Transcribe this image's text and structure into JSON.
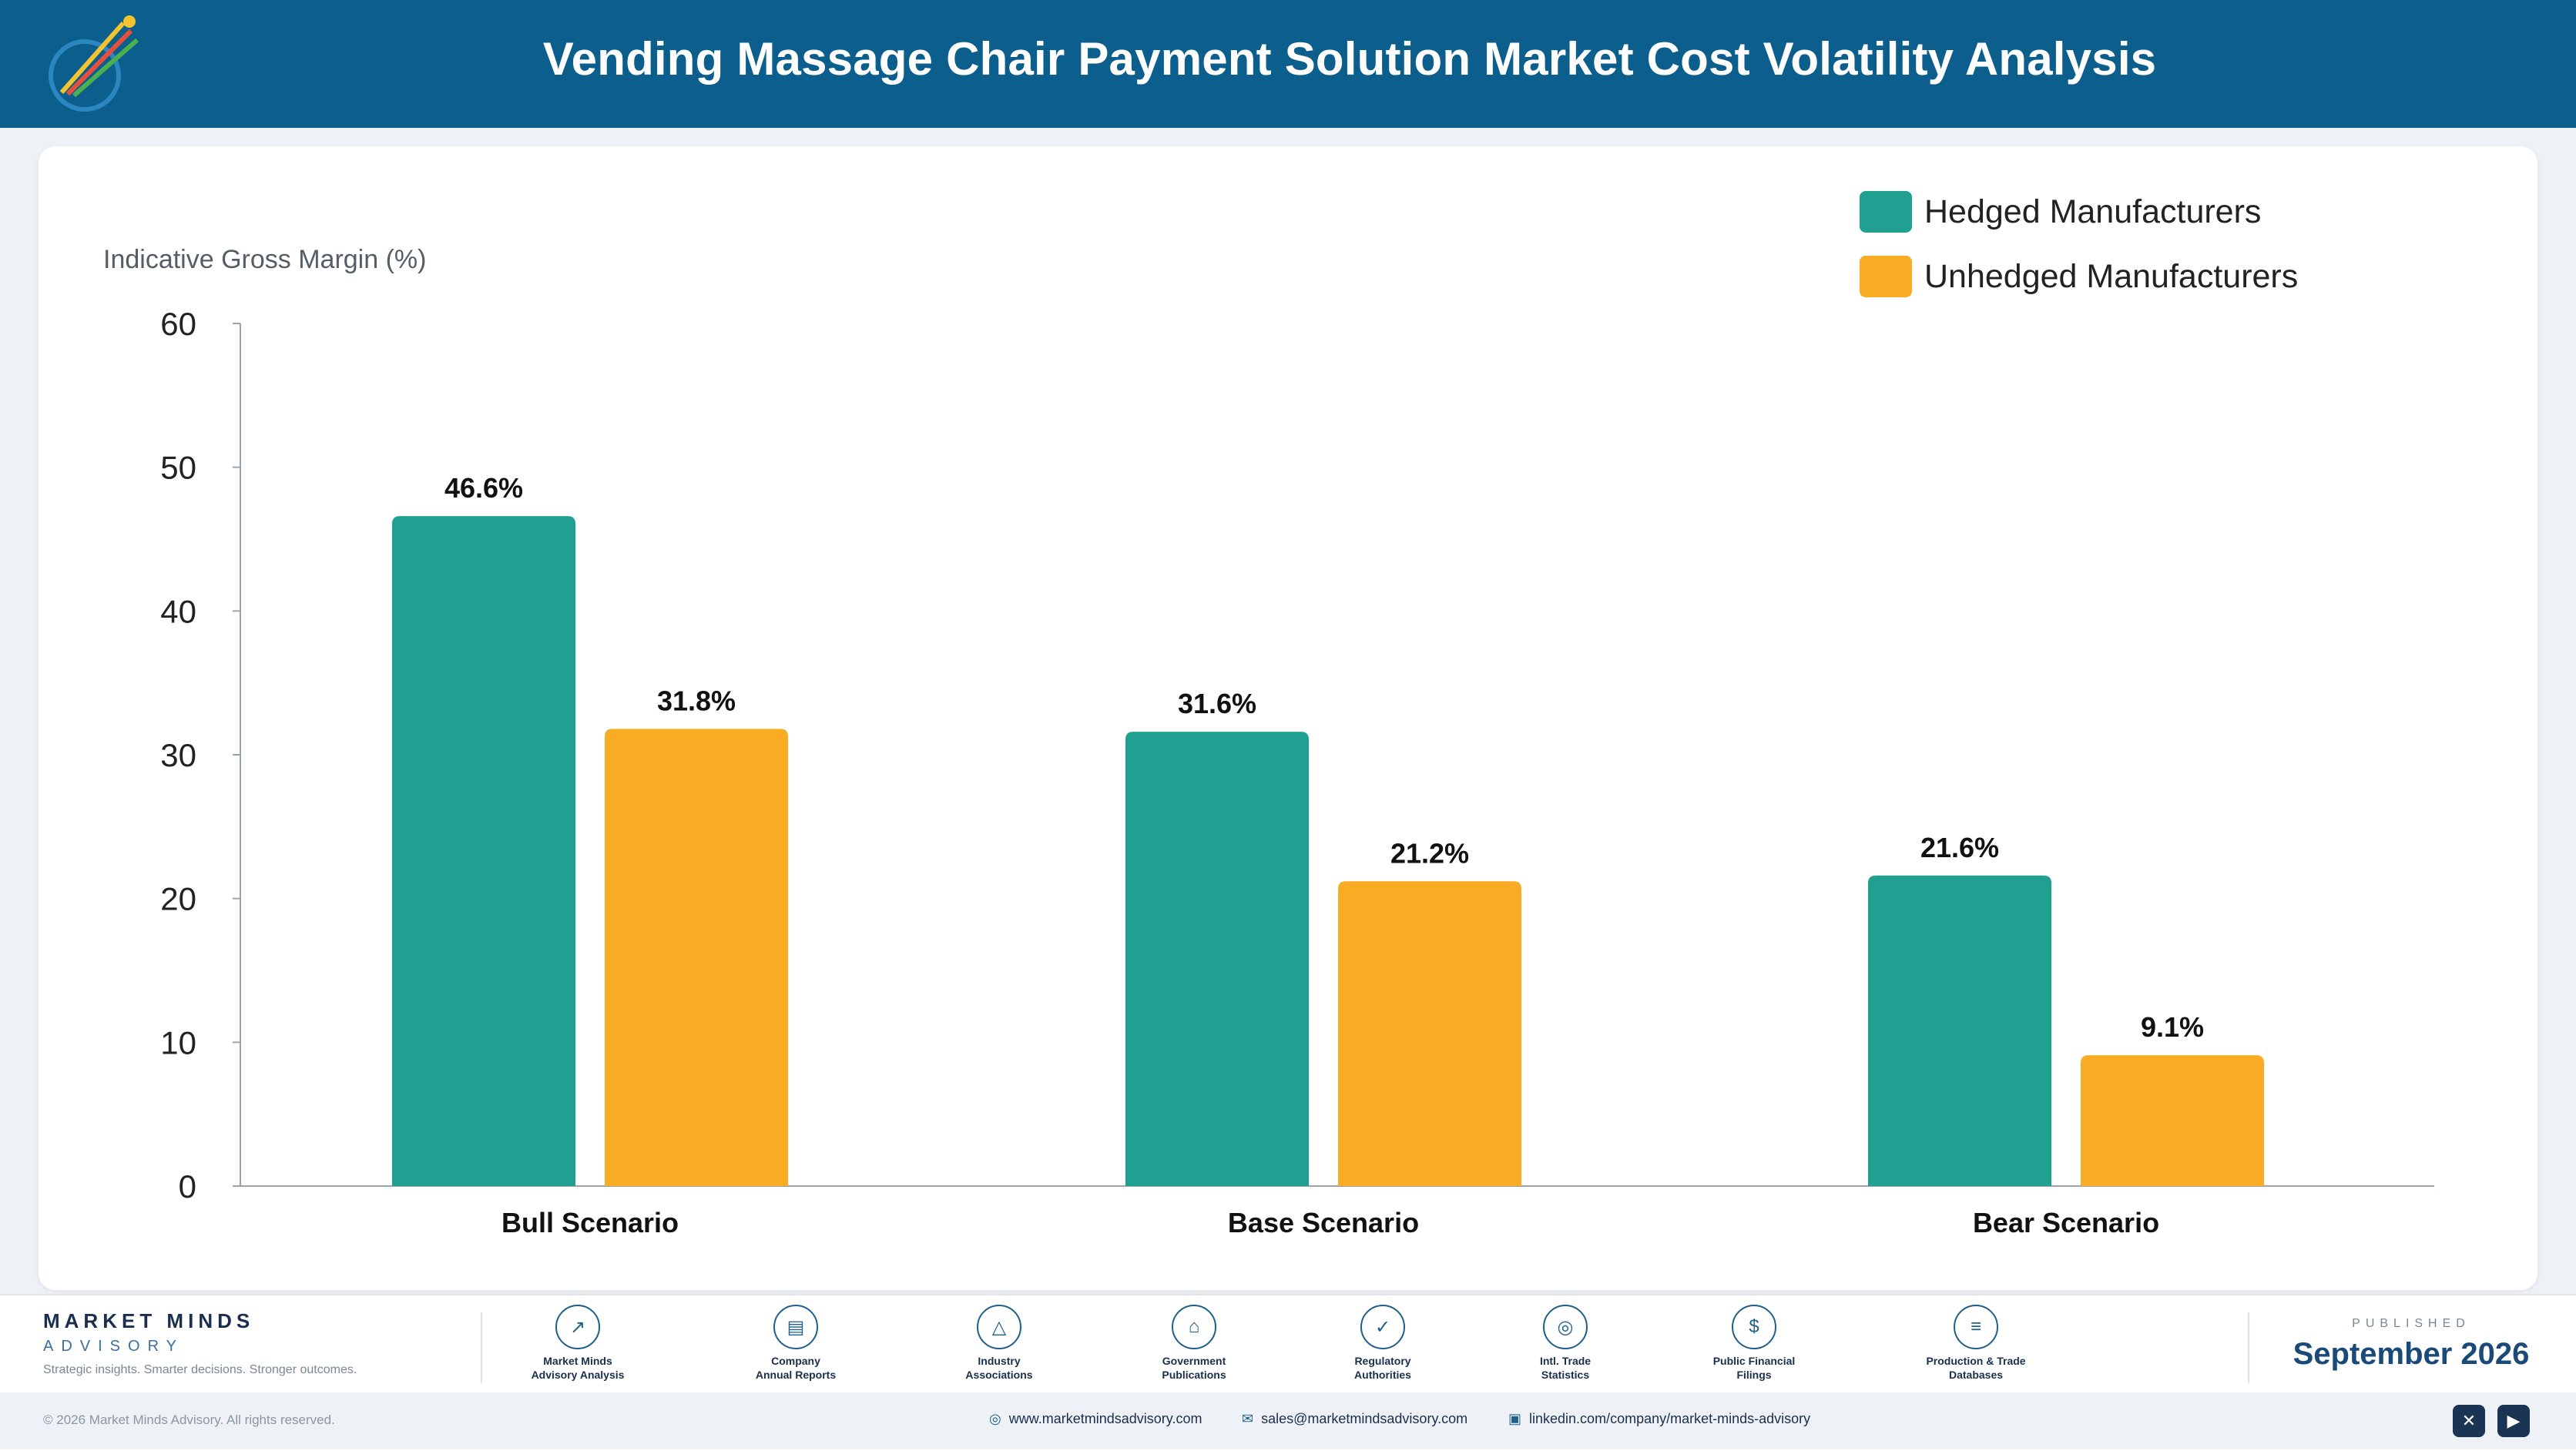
{
  "header": {
    "title": "Vending Massage Chair Payment Solution Market Cost Volatility Analysis"
  },
  "colors": {
    "hedged": "#20a090",
    "unhedged": "#f8ac24",
    "header_bg": "#0c5f8c"
  },
  "chart_data": {
    "type": "bar",
    "title": "",
    "xlabel": "",
    "ylabel": "Indicative Gross Margin (%)",
    "categories": [
      "Bull Scenario",
      "Base Scenario",
      "Bear Scenario"
    ],
    "series": [
      {
        "name": "Hedged Manufacturers",
        "values": [
          46.6,
          31.6,
          21.6
        ],
        "labels": [
          "46.6%",
          "31.6%",
          "21.6%"
        ]
      },
      {
        "name": "Unhedged Manufacturers",
        "values": [
          31.8,
          21.2,
          9.1
        ],
        "labels": [
          "31.8%",
          "21.2%",
          "9.1%"
        ]
      }
    ],
    "ylim": [
      0,
      60
    ],
    "yticks": [
      "0",
      "10",
      "20",
      "30",
      "40",
      "50",
      "60"
    ],
    "grid": false,
    "legend": "top-right"
  },
  "footer": {
    "brand_name": "MARKET MINDS",
    "brand_sub": "ADVISORY",
    "tagline": "Strategic insights. Smarter decisions. Stronger outcomes.",
    "sources": [
      {
        "label": "Market Minds\nAdvisory Analysis",
        "icon": "chart-trend-icon"
      },
      {
        "label": "Company\nAnnual Reports",
        "icon": "document-icon"
      },
      {
        "label": "Industry\nAssociations",
        "icon": "network-icon"
      },
      {
        "label": "Government\nPublications",
        "icon": "government-building-icon"
      },
      {
        "label": "Regulatory\nAuthorities",
        "icon": "shield-check-icon"
      },
      {
        "label": "Intl. Trade\nStatistics",
        "icon": "globe-icon"
      },
      {
        "label": "Public Financial\nFilings",
        "icon": "dollar-coin-icon"
      },
      {
        "label": "Production & Trade\nDatabases",
        "icon": "database-icon"
      }
    ],
    "published_label": "PUBLISHED",
    "published_date": "September 2026",
    "copyright": "© 2026 Market Minds Advisory. All rights reserved.",
    "website": "www.marketmindsadvisory.com",
    "email": "sales@marketmindsadvisory.com",
    "linkedin": "linkedin.com/company/market-minds-advisory"
  }
}
